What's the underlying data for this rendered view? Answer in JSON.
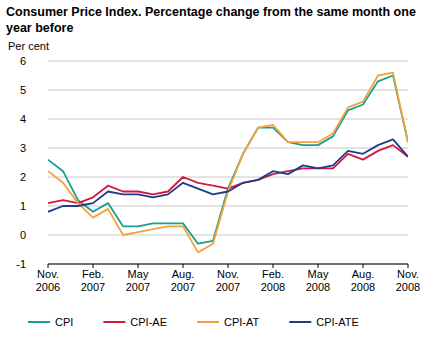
{
  "chart_data": {
    "type": "line",
    "title": "Consumer Price Index. Percentage change from the same month one year before",
    "y_label": "Per cent",
    "categories": [
      "Nov. 2006",
      null,
      null,
      "Feb. 2007",
      null,
      null,
      "May 2007",
      null,
      null,
      "Aug. 2007",
      null,
      null,
      "Nov. 2007",
      null,
      null,
      "Feb. 2008",
      null,
      null,
      "May 2008",
      null,
      null,
      "Aug. 2008",
      null,
      null,
      "Nov. 2008"
    ],
    "series": [
      {
        "name": "CPI",
        "color": "#1b9e8f",
        "values": [
          2.6,
          2.2,
          1.2,
          0.8,
          1.1,
          0.3,
          0.3,
          0.4,
          0.4,
          0.4,
          -0.3,
          -0.2,
          1.6,
          2.8,
          3.7,
          3.7,
          3.2,
          3.1,
          3.1,
          3.4,
          4.3,
          4.5,
          5.3,
          5.5,
          3.2
        ]
      },
      {
        "name": "CPI-AE",
        "color": "#d1193f",
        "values": [
          1.1,
          1.2,
          1.1,
          1.3,
          1.7,
          1.5,
          1.5,
          1.4,
          1.5,
          2.0,
          1.8,
          1.7,
          1.6,
          1.8,
          1.9,
          2.1,
          2.2,
          2.3,
          2.3,
          2.3,
          2.8,
          2.6,
          2.9,
          3.1,
          2.7
        ]
      },
      {
        "name": "CPI-AT",
        "color": "#f5a23a",
        "values": [
          2.2,
          1.8,
          1.1,
          0.6,
          0.9,
          0.0,
          0.1,
          0.2,
          0.3,
          0.3,
          -0.6,
          -0.3,
          1.5,
          2.8,
          3.7,
          3.8,
          3.2,
          3.2,
          3.2,
          3.5,
          4.4,
          4.6,
          5.5,
          5.6,
          3.2
        ]
      },
      {
        "name": "CPI-ATE",
        "color": "#1f3c8c",
        "values": [
          0.8,
          1.0,
          1.0,
          1.1,
          1.5,
          1.4,
          1.4,
          1.3,
          1.4,
          1.8,
          1.6,
          1.4,
          1.5,
          1.8,
          1.9,
          2.2,
          2.1,
          2.4,
          2.3,
          2.4,
          2.9,
          2.8,
          3.1,
          3.3,
          2.7
        ]
      }
    ],
    "ylim": [
      -1,
      6
    ],
    "yticks": [
      -1,
      0,
      1,
      2,
      3,
      4,
      5,
      6
    ],
    "grid": true,
    "legend": "bottom"
  }
}
